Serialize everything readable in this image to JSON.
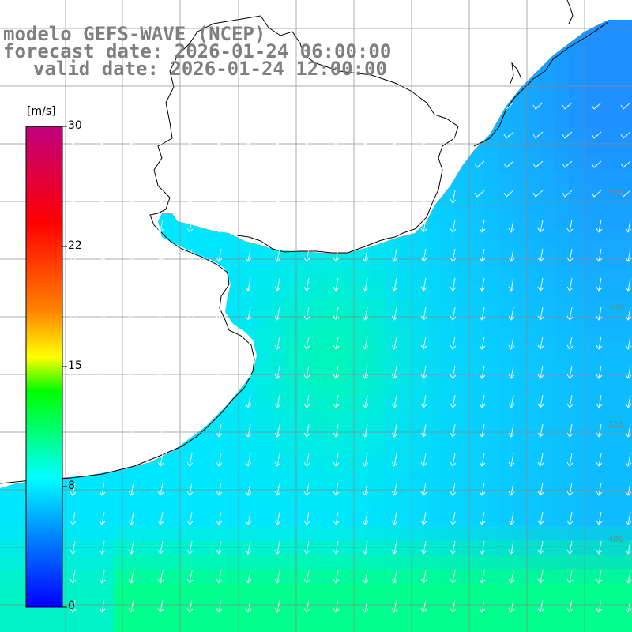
{
  "header": {
    "line1": "modelo GEFS-WAVE (NCEP)",
    "line2": "forecast date: 2026-01-24 06:00:00",
    "line3": "valid date: 2026-01-24 12:00:00"
  },
  "colorbar": {
    "unit": "[m/s]",
    "ticks": [
      "30",
      "22",
      "15",
      "8",
      "0"
    ],
    "min": 0,
    "max": 30,
    "colors": [
      "#0000ff",
      "#00aaff",
      "#00ffff",
      "#00ff00",
      "#ffff00",
      "#ff8000",
      "#ff0000",
      "#c0007f"
    ]
  },
  "map_labels": {
    "lat_40": "40S",
    "lat_35": "35S",
    "lat_30": "30S",
    "lat_25": "25S"
  },
  "field": {
    "variable": "wind speed",
    "typical_direction": "from north-east, blowing toward south-south-west",
    "colors": {
      "ocean_low": "#1e90ff",
      "ocean_mid": "#00e0ff",
      "ocean_high": "#00ff88"
    }
  }
}
